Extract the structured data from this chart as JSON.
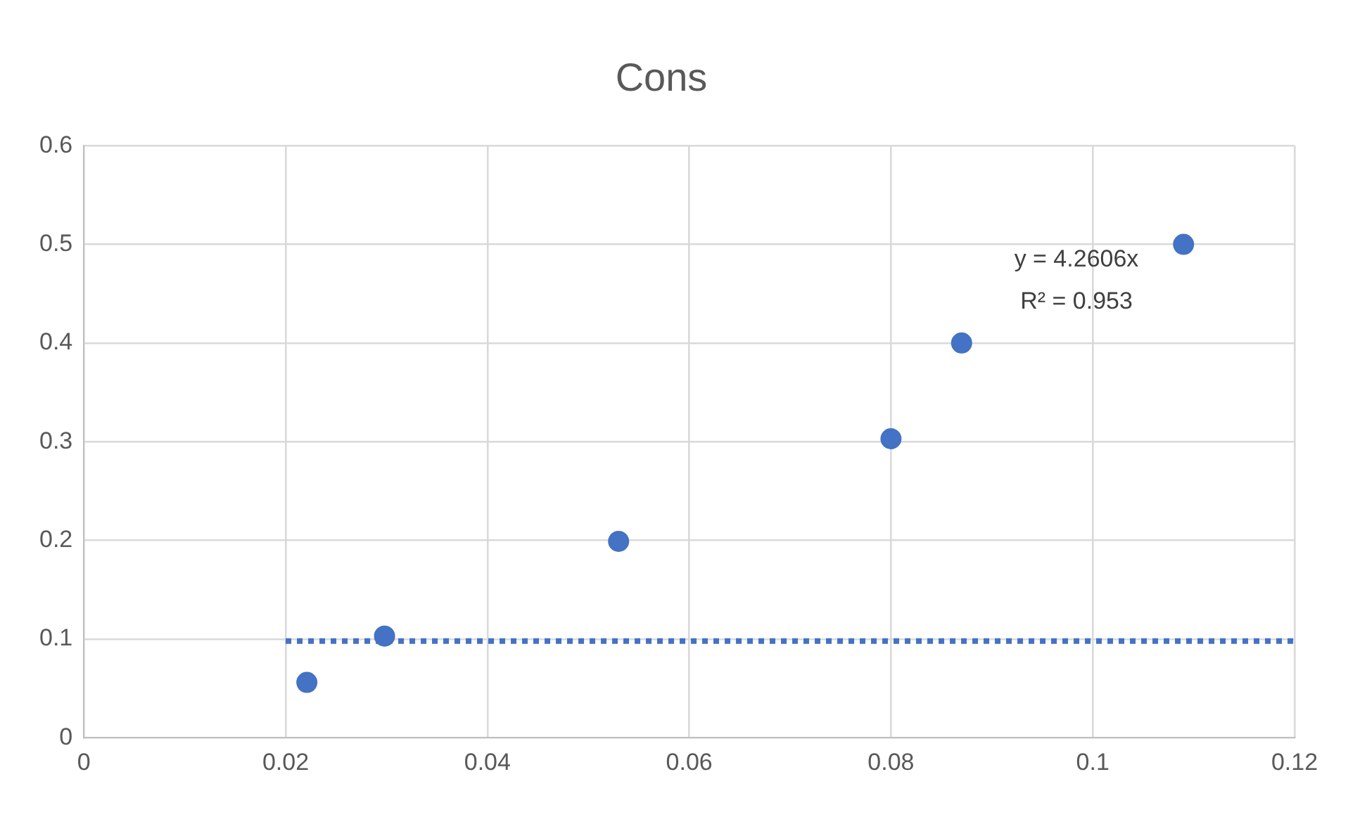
{
  "chart_data": {
    "type": "scatter",
    "title": "Cons",
    "series": [
      {
        "type": "scatter",
        "color": "#4472c4",
        "x": [
          0.0221,
          0.0298,
          0.053,
          0.08,
          0.087,
          0.109
        ],
        "values": [
          0.056,
          0.103,
          0.199,
          0.303,
          0.4,
          0.5
        ],
        "marker": "circle"
      },
      {
        "type": "line",
        "color": "#4472c4",
        "x": [
          0.02,
          0.12
        ],
        "values": [
          0.098,
          0.098
        ],
        "line_style": "dotted",
        "marker": "none"
      }
    ],
    "xlim": [
      0,
      0.12
    ],
    "xticks": [
      0,
      0.02,
      0.04,
      0.06,
      0.08,
      0.1,
      0.12
    ],
    "ylim": [
      0,
      0.6
    ],
    "yticks": [
      0,
      0.1,
      0.2,
      0.3,
      0.4,
      0.5,
      0.6
    ],
    "grid": true,
    "legend": false,
    "annotations": [
      "y = 4.2606x",
      "R² = 0.953"
    ]
  }
}
